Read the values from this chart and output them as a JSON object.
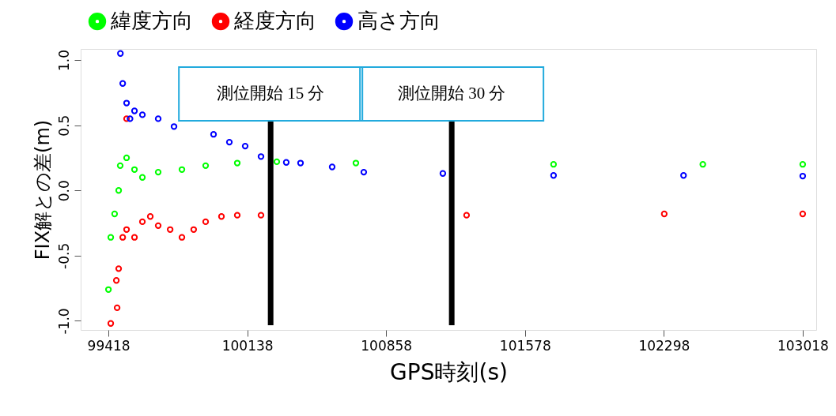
{
  "chart_data": {
    "type": "scatter",
    "xlabel": "GPS時刻(s)",
    "ylabel": "FIX解との差(m)",
    "xlim": [
      99274,
      103088
    ],
    "ylim": [
      -1.07,
      1.085
    ],
    "xticks": [
      99418,
      100138,
      100858,
      101578,
      102298,
      103018
    ],
    "yticks": [
      {
        "value": -1,
        "label": "-1.0"
      },
      {
        "value": -0.5,
        "label": "-0.5"
      },
      {
        "value": 0,
        "label": "0.0"
      },
      {
        "value": 0.5,
        "label": "0.5"
      },
      {
        "value": 1,
        "label": "1.0"
      }
    ],
    "grid": false,
    "legend": "top left",
    "marker": "circle",
    "ref_lines": [
      {
        "axis": "x",
        "value": 100259,
        "label": "測位開始 15 分",
        "color": "#000000"
      },
      {
        "axis": "x",
        "value": 101198,
        "label": "測位開始 30 分",
        "color": "#000000"
      }
    ],
    "series": [
      {
        "name": "緯度方向",
        "color": "#00ff00",
        "x": [
          99418,
          99430,
          99450,
          99471,
          99479,
          99512,
          99553,
          99594,
          99676,
          99799,
          99922,
          100086,
          100291,
          100701,
          101726,
          102500,
          103018
        ],
        "values": [
          -0.76,
          -0.36,
          -0.18,
          0.0,
          0.19,
          0.25,
          0.16,
          0.1,
          0.14,
          0.16,
          0.19,
          0.21,
          0.22,
          0.21,
          0.2,
          0.2,
          0.2
        ]
      },
      {
        "name": "経度方向",
        "color": "#ff0000",
        "x": [
          99430,
          99463,
          99459,
          99471,
          99492,
          99512,
          99553,
          99594,
          99635,
          99676,
          99738,
          99799,
          99860,
          99922,
          100004,
          100086,
          100209,
          101275,
          102300,
          103018,
          99512
        ],
        "values": [
          -1.02,
          -0.9,
          -0.69,
          -0.6,
          -0.36,
          -0.3,
          -0.36,
          -0.24,
          -0.2,
          -0.27,
          -0.3,
          -0.36,
          -0.3,
          -0.24,
          -0.2,
          -0.19,
          -0.19,
          -0.19,
          -0.18,
          -0.18,
          0.55
        ]
      },
      {
        "name": "高さ方向",
        "color": "#0000ff",
        "x": [
          99480,
          99492,
          99512,
          99530,
          99553,
          99594,
          99676,
          99758,
          99963,
          100045,
          100127,
          100209,
          100340,
          100414,
          100578,
          100742,
          101152,
          101726,
          102400,
          103018
        ],
        "values": [
          1.05,
          0.82,
          0.67,
          0.55,
          0.61,
          0.58,
          0.55,
          0.49,
          0.43,
          0.37,
          0.34,
          0.26,
          0.215,
          0.21,
          0.18,
          0.14,
          0.13,
          0.115,
          0.115,
          0.11
        ]
      }
    ]
  }
}
